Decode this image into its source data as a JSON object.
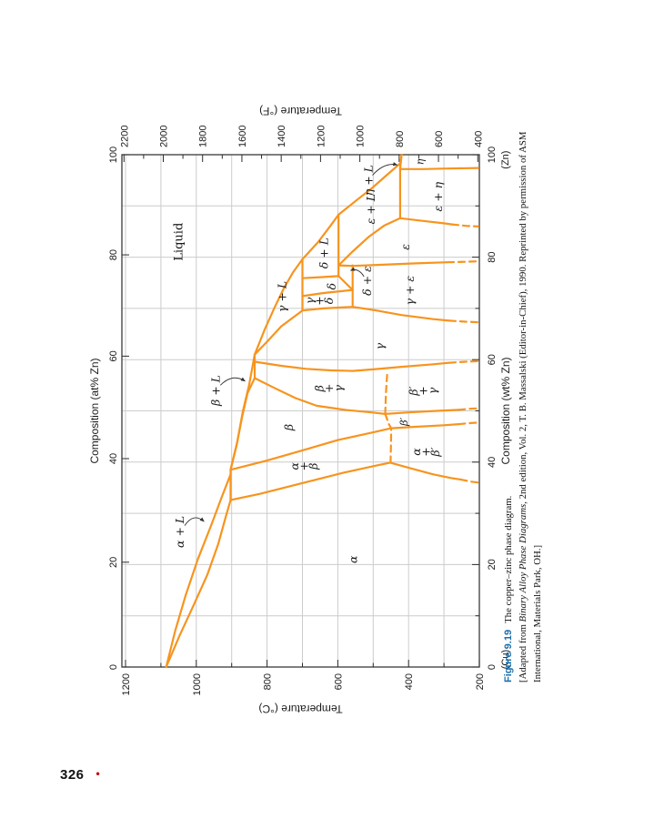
{
  "page": {
    "number": "326",
    "bullet": "•"
  },
  "caption": {
    "tag": "Figure 9.19",
    "title": "The copper–zinc phase diagram.",
    "line2_pre": "[Adapted from ",
    "line2_italic": "Binary Alloy Phase Diagrams",
    "line2_post": ", 2nd edition, Vol. 2, T. B. Massalski (Editor-in-Chief), 1990. Reprinted by permission of ASM",
    "line3": "International, Materials Park, OH.]"
  },
  "colors": {
    "curve": "#f7941e",
    "grid": "#cccccc",
    "axis": "#3a3a3a",
    "tick": "#2b2b2b",
    "text": "#1a1a1a",
    "caption_tag": "#1b6fae",
    "bullet": "#c00000"
  },
  "chart_data": {
    "type": "line",
    "xlabel_bottom": "Composition (wt% Zn)",
    "xlabel_top": "Composition (at% Zn)",
    "ylabel_left": "Temperature (°C)",
    "ylabel_right": "Temperature (°F)",
    "end_label_left": "(Cu)",
    "end_label_right": "(Zn)",
    "xlim": [
      0,
      100
    ],
    "ylim_c": [
      200,
      1200
    ],
    "ylim_f": [
      400,
      2200
    ],
    "ticks_wt": [
      0,
      20,
      40,
      60,
      80,
      100
    ],
    "minor_wt": [
      10,
      30,
      50,
      70,
      90
    ],
    "ticks_at": [
      0,
      20,
      40,
      60,
      80,
      100
    ],
    "ticks_at_wtpos": [
      0,
      20.46,
      40.68,
      60.68,
      80.45,
      100
    ],
    "ticks_c": [
      200,
      400,
      600,
      800,
      1000,
      1200
    ],
    "minor_c": [
      300,
      500,
      700,
      900,
      1100
    ],
    "ticks_f": [
      400,
      600,
      800,
      1000,
      1200,
      1400,
      1600,
      1800,
      2000,
      2200
    ],
    "minor_f": [
      500,
      700,
      900,
      1100,
      1300,
      1500,
      1700,
      1900,
      2100
    ],
    "grid_wt": [
      10,
      20,
      30,
      40,
      50,
      60,
      70,
      80,
      90
    ],
    "grid_c": [
      300,
      400,
      500,
      600,
      700,
      800,
      900,
      1000,
      1100,
      1200
    ],
    "curves": [
      {
        "name": "liquidus-cu",
        "style": "solid",
        "points": [
          [
            0,
            1085
          ],
          [
            7,
            1060
          ],
          [
            14,
            1030
          ],
          [
            21,
            996
          ],
          [
            28,
            956
          ],
          [
            33,
            929
          ],
          [
            37.6,
            903
          ]
        ]
      },
      {
        "name": "solidus-alpha",
        "style": "solid",
        "points": [
          [
            0,
            1085
          ],
          [
            6,
            1048
          ],
          [
            12,
            1008
          ],
          [
            18,
            969
          ],
          [
            24,
            938
          ],
          [
            29,
            918
          ],
          [
            32.6,
            903
          ]
        ]
      },
      {
        "name": "tie-903",
        "style": "solid",
        "points": [
          [
            32.6,
            903
          ],
          [
            38.5,
            903
          ]
        ]
      },
      {
        "name": "liquidus-beta",
        "style": "solid",
        "points": [
          [
            38.5,
            903
          ],
          [
            44,
            884
          ],
          [
            50,
            868
          ],
          [
            55,
            851
          ],
          [
            61,
            835
          ]
        ]
      },
      {
        "name": "solidus-beta",
        "style": "solid",
        "points": [
          [
            38.5,
            903
          ],
          [
            43,
            887
          ],
          [
            49,
            870
          ],
          [
            53.5,
            855
          ],
          [
            56.4,
            835
          ]
        ]
      },
      {
        "name": "tie-835",
        "style": "solid",
        "points": [
          [
            56.4,
            835
          ],
          [
            61,
            835
          ]
        ]
      },
      {
        "name": "beta-right",
        "style": "solid",
        "points": [
          [
            56.4,
            835
          ],
          [
            54.5,
            780
          ],
          [
            52.5,
            720
          ],
          [
            51,
            660
          ],
          [
            50.2,
            580
          ],
          [
            49.7,
            505
          ],
          [
            49.4,
            466
          ]
        ]
      },
      {
        "name": "betaprime-right",
        "style": "solid",
        "points": [
          [
            49.4,
            466
          ],
          [
            49.7,
            400
          ],
          [
            50,
            320
          ],
          [
            50.2,
            258
          ]
        ]
      },
      {
        "name": "betaprime-right-dash",
        "style": "dashed",
        "points": [
          [
            50.2,
            258
          ],
          [
            50.4,
            228
          ],
          [
            50.5,
            204
          ]
        ]
      },
      {
        "name": "gamma-left",
        "style": "solid",
        "points": [
          [
            59.6,
            835
          ],
          [
            58.8,
            760
          ],
          [
            58.2,
            690
          ],
          [
            57.9,
            620
          ],
          [
            57.8,
            558
          ],
          [
            58.1,
            500
          ],
          [
            58.6,
            420
          ],
          [
            59.1,
            330
          ],
          [
            59.4,
            285
          ]
        ]
      },
      {
        "name": "gamma-left-dash",
        "style": "dashed",
        "points": [
          [
            59.4,
            285
          ],
          [
            59.6,
            240
          ],
          [
            59.7,
            203
          ]
        ]
      },
      {
        "name": "gamma-solidus",
        "style": "solid",
        "points": [
          [
            61,
            835
          ],
          [
            63.5,
            800
          ],
          [
            66.5,
            760
          ],
          [
            69.6,
            700
          ]
        ]
      },
      {
        "name": "liquidus-gamma",
        "style": "solid",
        "points": [
          [
            61,
            835
          ],
          [
            66,
            806
          ],
          [
            70,
            780
          ],
          [
            74,
            752
          ],
          [
            77,
            727
          ],
          [
            79.6,
            700
          ]
        ]
      },
      {
        "name": "tie-700",
        "style": "solid",
        "points": [
          [
            69.6,
            700
          ],
          [
            79.6,
            700
          ]
        ]
      },
      {
        "name": "gamma-right-upper",
        "style": "solid",
        "points": [
          [
            69.6,
            700
          ],
          [
            70,
            640
          ],
          [
            70.3,
            558
          ]
        ]
      },
      {
        "name": "delta-left",
        "style": "solid",
        "points": [
          [
            72.4,
            700
          ],
          [
            73,
            640
          ],
          [
            73.6,
            558
          ]
        ]
      },
      {
        "name": "delta-right",
        "style": "solid",
        "points": [
          [
            75.9,
            700
          ],
          [
            76.1,
            650
          ],
          [
            76.3,
            598
          ]
        ]
      },
      {
        "name": "delta-eutectoid-edge",
        "style": "solid",
        "points": [
          [
            76.3,
            598
          ],
          [
            73.6,
            558
          ]
        ]
      },
      {
        "name": "liquidus-delta",
        "style": "solid",
        "points": [
          [
            79.6,
            700
          ],
          [
            83,
            655
          ],
          [
            86,
            622
          ],
          [
            88.3,
            598
          ]
        ]
      },
      {
        "name": "tie-598",
        "style": "solid",
        "points": [
          [
            76.3,
            598
          ],
          [
            88.3,
            598
          ]
        ]
      },
      {
        "name": "tie-558",
        "style": "solid",
        "points": [
          [
            70.3,
            558
          ],
          [
            78.4,
            558
          ]
        ]
      },
      {
        "name": "gamma-right-lower",
        "style": "solid",
        "points": [
          [
            70.3,
            558
          ],
          [
            69.7,
            500
          ],
          [
            68.7,
            420
          ],
          [
            67.9,
            330
          ],
          [
            67.6,
            285
          ]
        ]
      },
      {
        "name": "gamma-right-lower-dash",
        "style": "dashed",
        "points": [
          [
            67.6,
            285
          ],
          [
            67.4,
            240
          ],
          [
            67.3,
            203
          ]
        ]
      },
      {
        "name": "epsilon-left",
        "style": "solid",
        "points": [
          [
            78.4,
            598
          ],
          [
            78.3,
            558
          ],
          [
            78.5,
            480
          ],
          [
            78.8,
            380
          ],
          [
            79,
            290
          ]
        ]
      },
      {
        "name": "epsilon-left-dash",
        "style": "dashed",
        "points": [
          [
            79,
            290
          ],
          [
            79.1,
            240
          ],
          [
            79.2,
            203
          ]
        ]
      },
      {
        "name": "epsilon-solidus",
        "style": "solid",
        "points": [
          [
            78.4,
            598
          ],
          [
            81,
            560
          ],
          [
            84,
            512
          ],
          [
            86.2,
            468
          ],
          [
            87.6,
            424
          ]
        ]
      },
      {
        "name": "liquidus-epsilon",
        "style": "solid",
        "points": [
          [
            88.3,
            598
          ],
          [
            91,
            549
          ],
          [
            93.5,
            503
          ],
          [
            96,
            462
          ],
          [
            98.3,
            424
          ]
        ]
      },
      {
        "name": "tie-424",
        "style": "solid",
        "points": [
          [
            87.6,
            424
          ],
          [
            98.3,
            424
          ]
        ]
      },
      {
        "name": "liquidus-eta",
        "style": "solid",
        "points": [
          [
            98.3,
            424
          ],
          [
            100,
            419.6
          ]
        ]
      },
      {
        "name": "eta-solidus",
        "style": "solid",
        "points": [
          [
            97.2,
            424
          ],
          [
            100,
            419.6
          ]
        ]
      },
      {
        "name": "epsilon-right-lower",
        "style": "solid",
        "points": [
          [
            87.6,
            424
          ],
          [
            87,
            350
          ],
          [
            86.6,
            300
          ],
          [
            86.4,
            277
          ]
        ]
      },
      {
        "name": "epsilon-right-lower-dash",
        "style": "dashed",
        "points": [
          [
            86.4,
            277
          ],
          [
            86.1,
            235
          ],
          [
            86,
            203
          ]
        ]
      },
      {
        "name": "eta-left",
        "style": "solid",
        "points": [
          [
            97.2,
            424
          ],
          [
            97.2,
            360
          ],
          [
            97.3,
            290
          ],
          [
            97.4,
            203
          ]
        ]
      },
      {
        "name": "alpha-solvus-upper",
        "style": "solid",
        "points": [
          [
            32.6,
            903
          ],
          [
            33.8,
            820
          ],
          [
            35.2,
            740
          ],
          [
            36.6,
            660
          ],
          [
            38,
            580
          ],
          [
            39.2,
            500
          ],
          [
            39.9,
            452
          ]
        ]
      },
      {
        "name": "alpha-solvus-lower",
        "style": "solid",
        "points": [
          [
            39.9,
            452
          ],
          [
            38.7,
            390
          ],
          [
            37.6,
            330
          ],
          [
            36.9,
            280
          ],
          [
            36.6,
            253
          ]
        ]
      },
      {
        "name": "alpha-solvus-lower-dash",
        "style": "dashed",
        "points": [
          [
            36.6,
            253
          ],
          [
            36.2,
            225
          ],
          [
            36,
            203
          ]
        ]
      },
      {
        "name": "beta-left",
        "style": "solid",
        "points": [
          [
            38.5,
            903
          ],
          [
            40.3,
            800
          ],
          [
            42.3,
            700
          ],
          [
            44.3,
            600
          ],
          [
            45.8,
            500
          ],
          [
            46.6,
            449
          ]
        ]
      },
      {
        "name": "betaprime-left",
        "style": "solid",
        "points": [
          [
            46.6,
            449
          ],
          [
            46.9,
            380
          ],
          [
            47.2,
            300
          ],
          [
            47.4,
            258
          ]
        ]
      },
      {
        "name": "betaprime-left-dash",
        "style": "dashed",
        "points": [
          [
            47.4,
            258
          ],
          [
            47.6,
            228
          ],
          [
            47.7,
            205
          ]
        ]
      },
      {
        "name": "order-disorder-right-dash",
        "style": "dashed",
        "points": [
          [
            49.4,
            466
          ],
          [
            53.5,
            464
          ],
          [
            57.8,
            460
          ]
        ]
      },
      {
        "name": "order-disorder-left-dash",
        "style": "dashed",
        "points": [
          [
            49.4,
            466
          ],
          [
            47.3,
            455
          ],
          [
            46.6,
            449
          ],
          [
            43.2,
            450
          ],
          [
            39.9,
            451
          ]
        ]
      }
    ],
    "region_labels": [
      {
        "text": "Liquid",
        "w": 83,
        "T": 1050,
        "italic": false,
        "fs": 13
      },
      {
        "text": "α",
        "w": 21,
        "T": 556
      },
      {
        "text": "β",
        "w": 46.8,
        "T": 737
      },
      {
        "text": "γ",
        "w": 62.6,
        "T": 480
      },
      {
        "text": "δ",
        "w": 74.3,
        "T": 616
      },
      {
        "text": "ε",
        "w": 82,
        "T": 408
      },
      {
        "text": "η",
        "w": 98.6,
        "T": 368,
        "fs": 11
      },
      {
        "text": "β′",
        "w": 47.9,
        "T": 413,
        "fs": 11.5
      },
      {
        "text": "γ + ε",
        "w": 73.5,
        "T": 396
      },
      {
        "text": "ε + η",
        "w": 91.8,
        "T": 316
      },
      {
        "text": "γ + L",
        "w": 72.3,
        "T": 757
      },
      {
        "text": "δ + L",
        "w": 80.8,
        "T": 638
      },
      {
        "text": "ε + L",
        "w": 89.4,
        "T": 506
      },
      {
        "text": "α + β",
        "stack": [
          "α",
          "+",
          "β"
        ],
        "w": 39.2,
        "T": 688
      },
      {
        "text": "β + γ",
        "stack": [
          "β",
          "+",
          "γ"
        ],
        "w": 54.4,
        "T": 618
      },
      {
        "text": "γ + δ",
        "stack": [
          "γ",
          "+",
          "δ"
        ],
        "w": 71.5,
        "T": 645
      },
      {
        "text": "β′ + γ",
        "stack": [
          "β′",
          "+",
          "γ"
        ],
        "w": 53.9,
        "T": 352
      },
      {
        "text": "α + β′",
        "stack": [
          "α",
          "+",
          "β′"
        ],
        "w": 42,
        "T": 344
      }
    ],
    "leader_labels": [
      {
        "text": "α + L",
        "w": 26.4,
        "T": 1046,
        "from": [
          27.6,
          1033
        ],
        "ctrl": [
          30.2,
          1008
        ],
        "tip": [
          28.4,
          978
        ]
      },
      {
        "text": "β + L",
        "w": 54,
        "T": 944,
        "from": [
          55,
          932
        ],
        "ctrl": [
          57.4,
          898
        ],
        "tip": [
          55.8,
          862
        ]
      },
      {
        "text": "η + L",
        "w": 95,
        "T": 512,
        "from": [
          96,
          502
        ],
        "ctrl": [
          98.6,
          468
        ],
        "tip": [
          98,
          432
        ]
      },
      {
        "text": "δ + ε",
        "w": 75.4,
        "T": 516,
        "from": [
          76.2,
          526
        ],
        "ctrl": [
          78,
          542
        ],
        "tip": [
          77.4,
          564
        ]
      }
    ]
  }
}
